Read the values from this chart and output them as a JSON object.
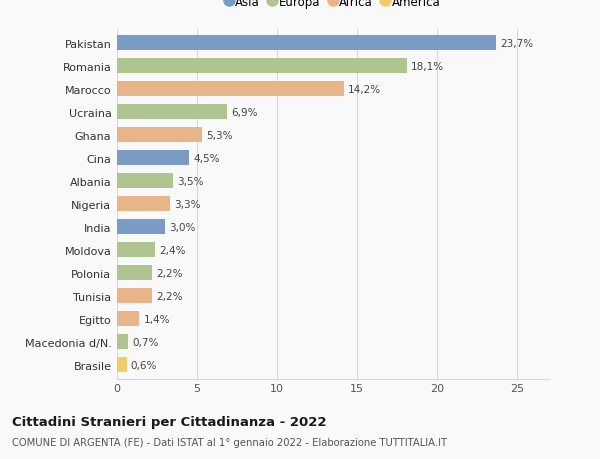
{
  "countries": [
    "Pakistan",
    "Romania",
    "Marocco",
    "Ucraina",
    "Ghana",
    "Cina",
    "Albania",
    "Nigeria",
    "India",
    "Moldova",
    "Polonia",
    "Tunisia",
    "Egitto",
    "Macedonia d/N.",
    "Brasile"
  ],
  "values": [
    23.7,
    18.1,
    14.2,
    6.9,
    5.3,
    4.5,
    3.5,
    3.3,
    3.0,
    2.4,
    2.2,
    2.2,
    1.4,
    0.7,
    0.6
  ],
  "labels": [
    "23,7%",
    "18,1%",
    "14,2%",
    "6,9%",
    "5,3%",
    "4,5%",
    "3,5%",
    "3,3%",
    "3,0%",
    "2,4%",
    "2,2%",
    "2,2%",
    "1,4%",
    "0,7%",
    "0,6%"
  ],
  "continents": [
    "Asia",
    "Europa",
    "Africa",
    "Europa",
    "Africa",
    "Asia",
    "Europa",
    "Africa",
    "Asia",
    "Europa",
    "Europa",
    "Africa",
    "Africa",
    "Europa",
    "America"
  ],
  "continent_colors": {
    "Asia": "#7a9cc4",
    "Europa": "#b0c490",
    "Africa": "#e8b48a",
    "America": "#f2cc6a"
  },
  "legend_order": [
    "Asia",
    "Europa",
    "Africa",
    "America"
  ],
  "title": "Cittadini Stranieri per Cittadinanza - 2022",
  "subtitle": "COMUNE DI ARGENTA (FE) - Dati ISTAT al 1° gennaio 2022 - Elaborazione TUTTITALIA.IT",
  "xlim": [
    0,
    27
  ],
  "xticks": [
    0,
    5,
    10,
    15,
    20,
    25
  ],
  "background_color": "#f9f9f9",
  "grid_color": "#d8d8d8",
  "bar_height": 0.65
}
